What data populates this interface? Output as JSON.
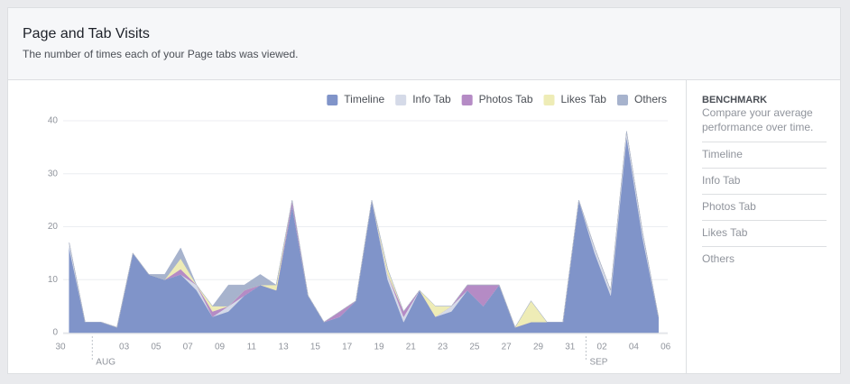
{
  "header": {
    "title": "Page and Tab Visits",
    "subtitle": "The number of times each of your Page tabs was viewed."
  },
  "chart_data": {
    "type": "stacked-area",
    "categories": [
      "30",
      null,
      null,
      null,
      "03",
      null,
      "05",
      null,
      "07",
      null,
      "09",
      null,
      "11",
      null,
      "13",
      null,
      "15",
      null,
      "17",
      null,
      "19",
      null,
      "21",
      null,
      "23",
      null,
      "25",
      null,
      "27",
      null,
      "29",
      null,
      "31",
      null,
      "02",
      null,
      "04",
      null,
      "06"
    ],
    "months": [
      "AUG",
      "SEP"
    ],
    "ylim": [
      0,
      40
    ],
    "yticks": [
      0,
      10,
      20,
      30,
      40
    ],
    "grid": true,
    "legend": "top-right",
    "series": [
      {
        "name": "Timeline",
        "color": "#8094c9",
        "values": [
          null,
          16,
          2,
          2,
          1,
          15,
          11,
          10,
          11,
          8,
          3,
          4,
          7,
          9,
          8,
          24,
          7,
          2,
          3,
          6,
          25,
          10,
          2,
          8,
          3,
          4,
          8,
          5,
          9,
          1,
          2,
          2,
          2,
          25,
          15,
          7,
          37,
          18,
          3
        ]
      },
      {
        "name": "Info Tab",
        "color": "#d5dae8",
        "values": [
          null,
          1,
          0,
          0,
          0,
          0,
          0,
          0,
          0,
          1,
          0,
          1,
          0,
          0,
          0,
          0,
          0,
          0,
          0,
          0,
          0,
          1,
          1,
          0,
          0,
          1,
          0,
          0,
          0,
          0,
          0,
          0,
          0,
          0,
          1,
          1,
          1,
          1,
          0
        ]
      },
      {
        "name": "Photos Tab",
        "color": "#b58bc5",
        "values": [
          null,
          0,
          0,
          0,
          0,
          0,
          0,
          0,
          1,
          0,
          1,
          0,
          1,
          0,
          0,
          1,
          0,
          0,
          1,
          0,
          0,
          0,
          1,
          0,
          0,
          0,
          1,
          4,
          0,
          0,
          0,
          0,
          0,
          0,
          0,
          0,
          0,
          0,
          0
        ]
      },
      {
        "name": "Likes Tab",
        "color": "#eeecb6",
        "values": [
          null,
          0,
          0,
          0,
          0,
          0,
          0,
          0,
          2,
          0,
          1,
          0,
          0,
          0,
          1,
          0,
          0,
          0,
          0,
          0,
          0,
          1,
          0,
          0,
          2,
          0,
          0,
          0,
          0,
          0,
          4,
          0,
          0,
          0,
          0,
          0,
          0,
          0,
          0
        ]
      },
      {
        "name": "Others",
        "color": "#a7b3cd",
        "values": [
          null,
          0,
          0,
          0,
          0,
          0,
          0,
          1,
          2,
          0,
          0,
          4,
          1,
          2,
          0,
          0,
          0,
          0,
          0,
          0,
          0,
          0,
          0,
          0,
          0,
          0,
          0,
          0,
          0,
          0,
          0,
          0,
          0,
          0,
          0,
          0,
          0,
          0,
          0
        ]
      }
    ]
  },
  "sidebar": {
    "heading": "BENCHMARK",
    "description": "Compare your average performance over time.",
    "items": [
      "Timeline",
      "Info Tab",
      "Photos Tab",
      "Likes Tab",
      "Others"
    ]
  }
}
